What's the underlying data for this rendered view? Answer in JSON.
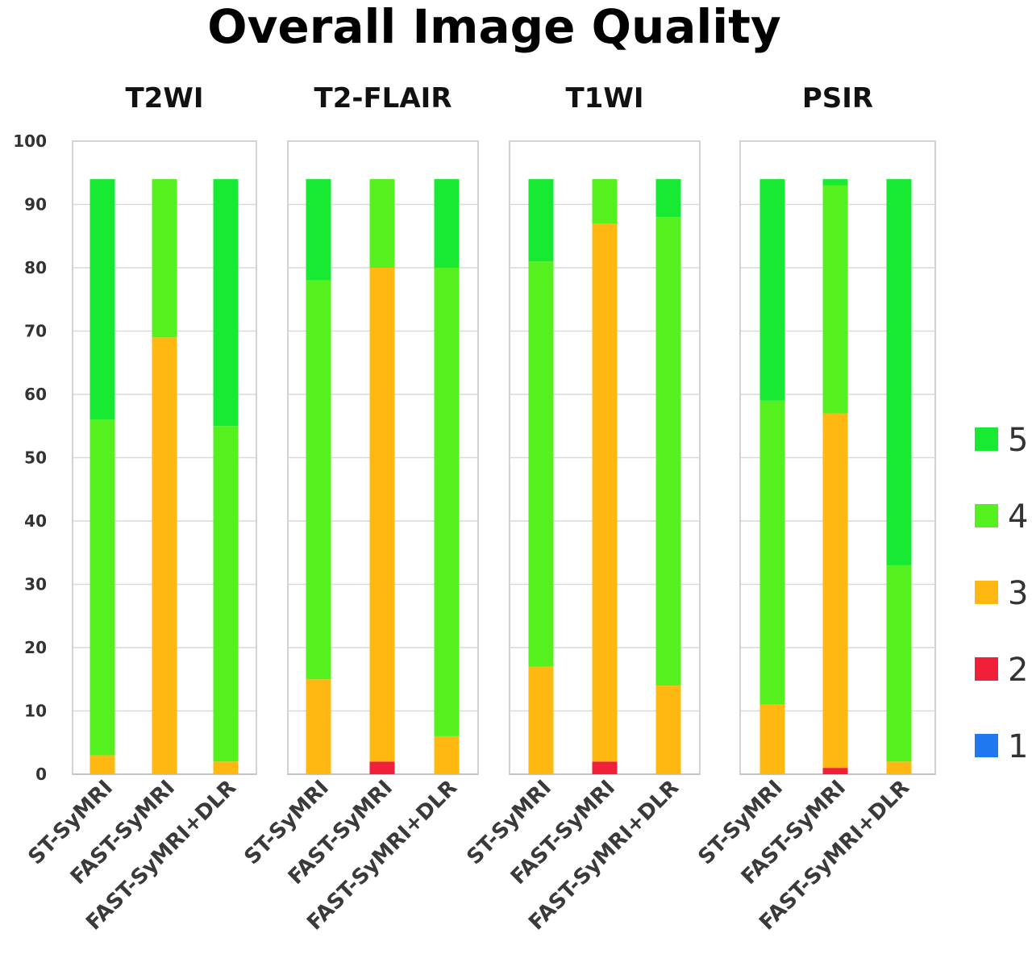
{
  "chart_data": {
    "type": "bar",
    "stacked": true,
    "title": "Overall Image Quality",
    "ylim": [
      0,
      100
    ],
    "yticks": [
      0,
      10,
      20,
      30,
      40,
      50,
      60,
      70,
      80,
      90,
      100
    ],
    "grid": true,
    "legend_position": "right",
    "series": [
      {
        "name": "1",
        "color": "#1f78f0"
      },
      {
        "name": "2",
        "color": "#f0203a"
      },
      {
        "name": "3",
        "color": "#ffb812"
      },
      {
        "name": "4",
        "color": "#55f01e"
      },
      {
        "name": "5",
        "color": "#18ea34"
      }
    ],
    "panels": [
      {
        "title": "T2WI",
        "categories": [
          "ST-SyMRI",
          "FAST-SyMRI",
          "FAST-SyMRI+DLR"
        ],
        "values": {
          "1": [
            0,
            0,
            0
          ],
          "2": [
            0,
            0,
            0
          ],
          "3": [
            3,
            69,
            2
          ],
          "4": [
            53,
            25,
            53
          ],
          "5": [
            38,
            0,
            39
          ]
        }
      },
      {
        "title": "T2-FLAIR",
        "categories": [
          "ST-SyMRI",
          "FAST-SyMRI",
          "FAST-SyMRI+DLR"
        ],
        "values": {
          "1": [
            0,
            0,
            0
          ],
          "2": [
            0,
            2,
            0
          ],
          "3": [
            15,
            78,
            6
          ],
          "4": [
            63,
            14,
            74
          ],
          "5": [
            16,
            0,
            14
          ]
        }
      },
      {
        "title": "T1WI",
        "categories": [
          "ST-SyMRI",
          "FAST-SyMRI",
          "FAST-SyMRI+DLR"
        ],
        "values": {
          "1": [
            0,
            0,
            0
          ],
          "2": [
            0,
            2,
            0
          ],
          "3": [
            17,
            85,
            14
          ],
          "4": [
            64,
            7,
            74
          ],
          "5": [
            13,
            0,
            6
          ]
        }
      },
      {
        "title": "PSIR",
        "categories": [
          "ST-SyMRI",
          "FAST-SyMRI",
          "FAST-SyMRI+DLR"
        ],
        "values": {
          "1": [
            0,
            0,
            0
          ],
          "2": [
            0,
            1,
            0
          ],
          "3": [
            11,
            56,
            2
          ],
          "4": [
            48,
            36,
            31
          ],
          "5": [
            35,
            1,
            61
          ]
        }
      }
    ]
  }
}
